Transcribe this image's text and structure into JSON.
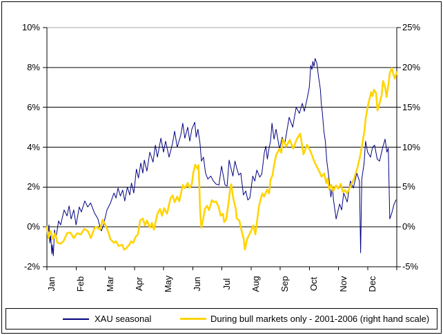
{
  "chart_data": {
    "type": "line",
    "title": "",
    "grid": true,
    "legend_position": "bottom",
    "colors": {
      "series1": "#000080",
      "series2": "#FFD400",
      "grid": "#000000",
      "plot_top_border": "#a6a6a6"
    },
    "x_axis": {
      "categories": [
        "Jan",
        "Feb",
        "Mar",
        "Apr",
        "May",
        "Jun",
        "Jul",
        "Aug",
        "Sep",
        "Oct",
        "Nov",
        "Dec"
      ]
    },
    "left_axis": {
      "ticks": [
        "10%",
        "8%",
        "6%",
        "4%",
        "2%",
        "0%",
        "-2%"
      ],
      "values": [
        10,
        8,
        6,
        4,
        2,
        0,
        -2
      ],
      "range": [
        -2,
        10
      ]
    },
    "right_axis": {
      "ticks": [
        "25%",
        "20%",
        "15%",
        "10%",
        "5%",
        "0%",
        "-5%"
      ],
      "values": [
        25,
        20,
        15,
        10,
        5,
        0,
        -5
      ],
      "range": [
        -5,
        25
      ]
    },
    "series": [
      {
        "name": "XAU seasonal",
        "axis": "left",
        "color": "#000080",
        "width": 1,
        "points": [
          [
            0,
            0
          ],
          [
            0.04,
            -0.35
          ],
          [
            0.07,
            0.1
          ],
          [
            0.1,
            -0.8
          ],
          [
            0.13,
            -0.45
          ],
          [
            0.17,
            -1.35
          ],
          [
            0.19,
            -0.9
          ],
          [
            0.22,
            -1.45
          ],
          [
            0.26,
            -0.15
          ],
          [
            0.31,
            -0.55
          ],
          [
            0.4,
            0.3
          ],
          [
            0.47,
            0.1
          ],
          [
            0.59,
            0.85
          ],
          [
            0.69,
            0.55
          ],
          [
            0.76,
            1.05
          ],
          [
            0.83,
            0.4
          ],
          [
            0.92,
            0.85
          ],
          [
            1,
            0.1
          ],
          [
            1.11,
            1
          ],
          [
            1.18,
            0.75
          ],
          [
            1.3,
            1.3
          ],
          [
            1.4,
            1
          ],
          [
            1.5,
            1.2
          ],
          [
            1.63,
            0.7
          ],
          [
            1.75,
            0.4
          ],
          [
            1.82,
            0
          ],
          [
            1.87,
            -0.2
          ],
          [
            1.94,
            0.1
          ],
          [
            2.06,
            0.85
          ],
          [
            2.18,
            1.2
          ],
          [
            2.3,
            1.7
          ],
          [
            2.37,
            1.45
          ],
          [
            2.44,
            1.95
          ],
          [
            2.52,
            1.55
          ],
          [
            2.6,
            1.85
          ],
          [
            2.67,
            1.3
          ],
          [
            2.76,
            2
          ],
          [
            2.84,
            1.6
          ],
          [
            2.9,
            2.2
          ],
          [
            2.98,
            1.7
          ],
          [
            3.07,
            2.9
          ],
          [
            3.14,
            2.45
          ],
          [
            3.22,
            3.2
          ],
          [
            3.29,
            2.7
          ],
          [
            3.34,
            3.35
          ],
          [
            3.43,
            2.8
          ],
          [
            3.53,
            3.75
          ],
          [
            3.64,
            3.25
          ],
          [
            3.72,
            4.1
          ],
          [
            3.79,
            3.5
          ],
          [
            3.91,
            4.45
          ],
          [
            4,
            3.75
          ],
          [
            4.07,
            4.3
          ],
          [
            4.19,
            3.5
          ],
          [
            4.31,
            4.2
          ],
          [
            4.38,
            4.8
          ],
          [
            4.47,
            4
          ],
          [
            4.59,
            4.6
          ],
          [
            4.66,
            5.2
          ],
          [
            4.73,
            4.45
          ],
          [
            4.83,
            5
          ],
          [
            4.9,
            4.3
          ],
          [
            4.97,
            4.9
          ],
          [
            5.07,
            5.25
          ],
          [
            5.12,
            4.5
          ],
          [
            5.18,
            4.9
          ],
          [
            5.25,
            4.2
          ],
          [
            5.3,
            3.3
          ],
          [
            5.37,
            3.5
          ],
          [
            5.44,
            2.7
          ],
          [
            5.52,
            2.4
          ],
          [
            5.62,
            2.55
          ],
          [
            5.71,
            2.3
          ],
          [
            5.8,
            2.15
          ],
          [
            5.9,
            2.1
          ],
          [
            5.99,
            3.05
          ],
          [
            6.04,
            2.65
          ],
          [
            6.11,
            2.1
          ],
          [
            6.18,
            2.05
          ],
          [
            6.25,
            3.35
          ],
          [
            6.32,
            2.9
          ],
          [
            6.38,
            2.55
          ],
          [
            6.45,
            3.3
          ],
          [
            6.51,
            2.95
          ],
          [
            6.58,
            2.6
          ],
          [
            6.65,
            2.7
          ],
          [
            6.74,
            1.6
          ],
          [
            6.82,
            1.8
          ],
          [
            6.89,
            1.35
          ],
          [
            6.96,
            1.45
          ],
          [
            7.06,
            2.55
          ],
          [
            7.13,
            2.3
          ],
          [
            7.2,
            2.85
          ],
          [
            7.3,
            2.5
          ],
          [
            7.37,
            2.65
          ],
          [
            7.46,
            3.75
          ],
          [
            7.51,
            4.05
          ],
          [
            7.56,
            3.4
          ],
          [
            7.62,
            3.95
          ],
          [
            7.67,
            4.3
          ],
          [
            7.72,
            5.2
          ],
          [
            7.79,
            4.4
          ],
          [
            7.86,
            4.9
          ],
          [
            7.98,
            3.9
          ],
          [
            8.07,
            4.5
          ],
          [
            8.16,
            4.2
          ],
          [
            8.31,
            5.5
          ],
          [
            8.43,
            5
          ],
          [
            8.55,
            6
          ],
          [
            8.66,
            5.7
          ],
          [
            8.76,
            6.2
          ],
          [
            8.83,
            5.8
          ],
          [
            8.92,
            6.4
          ],
          [
            9,
            7
          ],
          [
            9.05,
            8.1
          ],
          [
            9.09,
            7.9
          ],
          [
            9.12,
            8.3
          ],
          [
            9.16,
            8.05
          ],
          [
            9.2,
            8.45
          ],
          [
            9.26,
            8.2
          ],
          [
            9.31,
            7.6
          ],
          [
            9.38,
            6.9
          ],
          [
            9.41,
            6.2
          ],
          [
            9.45,
            5.7
          ],
          [
            9.5,
            4.8
          ],
          [
            9.55,
            4.3
          ],
          [
            9.6,
            3.3
          ],
          [
            9.67,
            2.5
          ],
          [
            9.74,
            1.5
          ],
          [
            9.79,
            2
          ],
          [
            9.83,
            1.35
          ],
          [
            9.92,
            0.4
          ],
          [
            10.04,
            1.15
          ],
          [
            10.11,
            0.85
          ],
          [
            10.18,
            1.7
          ],
          [
            10.3,
            1.25
          ],
          [
            10.41,
            2.3
          ],
          [
            10.51,
            1.95
          ],
          [
            10.63,
            2.7
          ],
          [
            10.72,
            2.3
          ],
          [
            10.76,
            -1.3
          ],
          [
            10.8,
            2.4
          ],
          [
            10.88,
            3.2
          ],
          [
            10.93,
            4.3
          ],
          [
            11,
            3.75
          ],
          [
            11.1,
            3.5
          ],
          [
            11.17,
            4
          ],
          [
            11.24,
            4.1
          ],
          [
            11.33,
            3.4
          ],
          [
            11.41,
            3.3
          ],
          [
            11.52,
            4
          ],
          [
            11.6,
            4.4
          ],
          [
            11.66,
            3.75
          ],
          [
            11.71,
            3.95
          ],
          [
            11.76,
            0.4
          ],
          [
            11.83,
            0.7
          ],
          [
            11.9,
            1.1
          ],
          [
            11.97,
            1.35
          ]
        ]
      },
      {
        "name": "During bull markets only - 2001-2006 (right hand scale)",
        "axis": "right",
        "color": "#FFD400",
        "width": 2.6,
        "points": [
          [
            0,
            0
          ],
          [
            0.05,
            -1.4
          ],
          [
            0.12,
            -0.5
          ],
          [
            0.21,
            -1.55
          ],
          [
            0.28,
            -0.8
          ],
          [
            0.36,
            -2
          ],
          [
            0.47,
            -2.1
          ],
          [
            0.57,
            -1.8
          ],
          [
            0.69,
            -0.8
          ],
          [
            0.8,
            -0.7
          ],
          [
            0.92,
            -1.4
          ],
          [
            1.04,
            -0.8
          ],
          [
            1.16,
            -0.95
          ],
          [
            1.28,
            -0.25
          ],
          [
            1.4,
            -0.5
          ],
          [
            1.51,
            -1.4
          ],
          [
            1.63,
            -0.15
          ],
          [
            1.7,
            0
          ],
          [
            1.82,
            -0.35
          ],
          [
            1.91,
            0.9
          ],
          [
            2.01,
            0.2
          ],
          [
            2.11,
            -0.7
          ],
          [
            2.18,
            -1.55
          ],
          [
            2.3,
            -2
          ],
          [
            2.37,
            -1.8
          ],
          [
            2.46,
            -2.4
          ],
          [
            2.58,
            -2.25
          ],
          [
            2.65,
            -2.85
          ],
          [
            2.72,
            -2.7
          ],
          [
            2.82,
            -2.25
          ],
          [
            2.89,
            -1.8
          ],
          [
            2.96,
            -2
          ],
          [
            3.05,
            -1.2
          ],
          [
            3.12,
            -0.95
          ],
          [
            3.2,
            0.8
          ],
          [
            3.29,
            1.05
          ],
          [
            3.36,
            0.2
          ],
          [
            3.43,
            0.8
          ],
          [
            3.53,
            -0.1
          ],
          [
            3.6,
            0.5
          ],
          [
            3.67,
            -0.35
          ],
          [
            3.79,
            1.65
          ],
          [
            3.88,
            2.25
          ],
          [
            3.95,
            1.4
          ],
          [
            4.02,
            2.35
          ],
          [
            4.12,
            1.65
          ],
          [
            4.24,
            3.6
          ],
          [
            4.31,
            3.95
          ],
          [
            4.38,
            3.1
          ],
          [
            4.47,
            3.8
          ],
          [
            4.54,
            3.2
          ],
          [
            4.66,
            5.25
          ],
          [
            4.73,
            4.85
          ],
          [
            4.83,
            5.5
          ],
          [
            4.9,
            4.9
          ],
          [
            4.97,
            5.35
          ],
          [
            5.02,
            6.8
          ],
          [
            5.09,
            7.8
          ],
          [
            5.16,
            7.3
          ],
          [
            5.2,
            7.75
          ],
          [
            5.23,
            5.1
          ],
          [
            5.25,
            2.5
          ],
          [
            5.28,
            0.6
          ],
          [
            5.3,
            -0.1
          ],
          [
            5.35,
            0.8
          ],
          [
            5.42,
            2.25
          ],
          [
            5.49,
            2.65
          ],
          [
            5.56,
            2.1
          ],
          [
            5.66,
            3.35
          ],
          [
            5.73,
            3.1
          ],
          [
            5.8,
            3.2
          ],
          [
            5.89,
            2.5
          ],
          [
            5.96,
            1.4
          ],
          [
            6.04,
            1.65
          ],
          [
            6.08,
            0.6
          ],
          [
            6.15,
            0.95
          ],
          [
            6.25,
            3.6
          ],
          [
            6.28,
            4.65
          ],
          [
            6.32,
            5.35
          ],
          [
            6.39,
            3.6
          ],
          [
            6.48,
            2.25
          ],
          [
            6.51,
            1.05
          ],
          [
            6.6,
            0.8
          ],
          [
            6.67,
            -0.35
          ],
          [
            6.75,
            -1.55
          ],
          [
            6.79,
            -2.85
          ],
          [
            6.87,
            -1.5
          ],
          [
            6.98,
            -0.7
          ],
          [
            7.08,
            0.2
          ],
          [
            7.15,
            -0.95
          ],
          [
            7.27,
            2.5
          ],
          [
            7.34,
            3.6
          ],
          [
            7.39,
            4.2
          ],
          [
            7.45,
            3.8
          ],
          [
            7.55,
            4.65
          ],
          [
            7.62,
            4.2
          ],
          [
            7.67,
            5.9
          ],
          [
            7.74,
            6.5
          ],
          [
            7.79,
            7.7
          ],
          [
            7.86,
            9
          ],
          [
            7.98,
            9.8
          ],
          [
            8.04,
            9.3
          ],
          [
            8.09,
            11
          ],
          [
            8.21,
            10.1
          ],
          [
            8.33,
            10.9
          ],
          [
            8.45,
            9.8
          ],
          [
            8.57,
            11
          ],
          [
            8.69,
            11.7
          ],
          [
            8.8,
            9.1
          ],
          [
            8.92,
            10.3
          ],
          [
            9.04,
            9.5
          ],
          [
            9.16,
            8.3
          ],
          [
            9.28,
            7.4
          ],
          [
            9.35,
            6.9
          ],
          [
            9.42,
            6.3
          ],
          [
            9.51,
            6.7
          ],
          [
            9.58,
            5.5
          ],
          [
            9.63,
            6.1
          ],
          [
            9.68,
            4.7
          ],
          [
            9.75,
            5.3
          ],
          [
            9.82,
            4.5
          ],
          [
            9.92,
            5.2
          ],
          [
            9.99,
            4.8
          ],
          [
            10.08,
            5.4
          ],
          [
            10.15,
            4.4
          ],
          [
            10.22,
            4.6
          ],
          [
            10.3,
            4.2
          ],
          [
            10.41,
            5.1
          ],
          [
            10.53,
            6
          ],
          [
            10.65,
            7.4
          ],
          [
            10.75,
            9
          ],
          [
            10.82,
            10.5
          ],
          [
            10.89,
            12
          ],
          [
            10.93,
            13.5
          ],
          [
            11.01,
            15.2
          ],
          [
            11.05,
            15.8
          ],
          [
            11.12,
            16.9
          ],
          [
            11.17,
            16.4
          ],
          [
            11.22,
            17.2
          ],
          [
            11.29,
            16.8
          ],
          [
            11.34,
            14.6
          ],
          [
            11.41,
            15.5
          ],
          [
            11.48,
            16.5
          ],
          [
            11.53,
            18.3
          ],
          [
            11.6,
            17.5
          ],
          [
            11.65,
            16.3
          ],
          [
            11.72,
            18
          ],
          [
            11.76,
            19.3
          ],
          [
            11.83,
            19.9
          ],
          [
            11.88,
            19.2
          ],
          [
            11.93,
            18.6
          ],
          [
            12,
            19.4
          ]
        ]
      }
    ]
  }
}
